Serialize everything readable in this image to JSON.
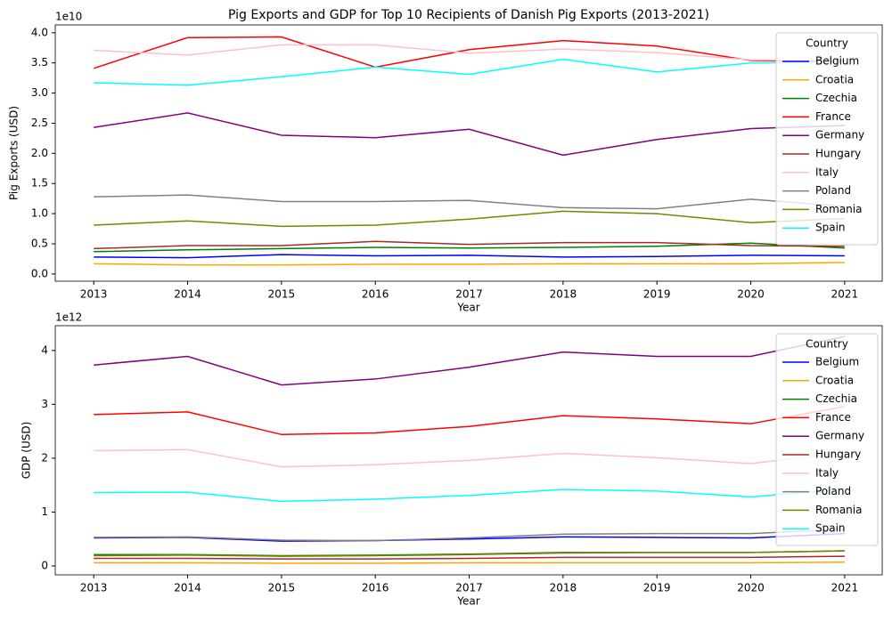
{
  "chart_data": [
    {
      "type": "line",
      "title": "Pig Exports and GDP for Top 10 Recipients of Danish Pig Exports (2013-2021)",
      "xlabel": "Year",
      "ylabel": "Pig Exports (USD)",
      "offset_text": "1e10",
      "x": [
        2013,
        2014,
        2015,
        2016,
        2017,
        2018,
        2019,
        2020,
        2021
      ],
      "xlim": [
        2012.59,
        2021.4
      ],
      "xticks": [
        2013,
        2014,
        2015,
        2016,
        2017,
        2018,
        2019,
        2020,
        2021
      ],
      "ylim": [
        -0.12,
        4.13
      ],
      "yticks": [
        {
          "value": 0,
          "label": "0.0"
        },
        {
          "value": 0.5,
          "label": "0.5"
        },
        {
          "value": 1,
          "label": "1.0"
        },
        {
          "value": 1.5,
          "label": "1.5"
        },
        {
          "value": 2,
          "label": "2.0"
        },
        {
          "value": 2.5,
          "label": "2.5"
        },
        {
          "value": 3,
          "label": "3.0"
        },
        {
          "value": 3.5,
          "label": "3.5"
        },
        {
          "value": 4,
          "label": "4.0"
        }
      ],
      "legend_title": "Country",
      "legend": "upper right",
      "series": [
        {
          "name": "Belgium",
          "color": "#0000ff",
          "values": [
            0.28,
            0.27,
            0.32,
            0.3,
            0.31,
            0.28,
            0.29,
            0.31,
            0.3
          ]
        },
        {
          "name": "Croatia",
          "color": "#ffa500",
          "values": [
            0.17,
            0.15,
            0.15,
            0.16,
            0.16,
            0.17,
            0.17,
            0.17,
            0.19
          ]
        },
        {
          "name": "Czechia",
          "color": "#008000",
          "values": [
            0.37,
            0.4,
            0.42,
            0.44,
            0.43,
            0.44,
            0.46,
            0.51,
            0.43
          ]
        },
        {
          "name": "France",
          "color": "#ff0000",
          "values": [
            3.41,
            3.92,
            3.93,
            3.43,
            3.72,
            3.87,
            3.78,
            3.54,
            3.53
          ]
        },
        {
          "name": "Germany",
          "color": "#800080",
          "values": [
            2.43,
            2.67,
            2.3,
            2.26,
            2.4,
            1.97,
            2.23,
            2.41,
            2.46
          ]
        },
        {
          "name": "Hungary",
          "color": "#a52a2a",
          "values": [
            0.42,
            0.47,
            0.47,
            0.54,
            0.49,
            0.52,
            0.52,
            0.47,
            0.46
          ]
        },
        {
          "name": "Italy",
          "color": "#ffc0cb",
          "values": [
            3.71,
            3.63,
            3.8,
            3.8,
            3.66,
            3.73,
            3.67,
            3.55,
            3.55
          ]
        },
        {
          "name": "Poland",
          "color": "#808080",
          "values": [
            1.28,
            1.31,
            1.2,
            1.2,
            1.22,
            1.1,
            1.08,
            1.24,
            1.12
          ]
        },
        {
          "name": "Romania",
          "color": "#808000",
          "values": [
            0.81,
            0.88,
            0.79,
            0.81,
            0.91,
            1.04,
            1.0,
            0.85,
            0.92
          ]
        },
        {
          "name": "Spain",
          "color": "#00ffff",
          "values": [
            3.17,
            3.13,
            3.27,
            3.43,
            3.31,
            3.56,
            3.35,
            3.5,
            3.52
          ]
        }
      ]
    },
    {
      "type": "line",
      "xlabel": "Year",
      "ylabel": "GDP (USD)",
      "offset_text": "1e12",
      "x": [
        2013,
        2014,
        2015,
        2016,
        2017,
        2018,
        2019,
        2020,
        2021
      ],
      "xlim": [
        2012.59,
        2021.4
      ],
      "xticks": [
        2013,
        2014,
        2015,
        2016,
        2017,
        2018,
        2019,
        2020,
        2021
      ],
      "ylim": [
        -0.165,
        4.46
      ],
      "yticks": [
        0,
        1,
        2,
        3,
        4
      ],
      "legend_title": "Country",
      "legend": "upper right",
      "series": [
        {
          "name": "Belgium",
          "color": "#0000ff",
          "values": [
            0.52,
            0.53,
            0.46,
            0.47,
            0.5,
            0.54,
            0.53,
            0.52,
            0.6
          ]
        },
        {
          "name": "Croatia",
          "color": "#ffa500",
          "values": [
            0.06,
            0.06,
            0.05,
            0.05,
            0.06,
            0.06,
            0.06,
            0.06,
            0.07
          ]
        },
        {
          "name": "Czechia",
          "color": "#008000",
          "values": [
            0.21,
            0.21,
            0.19,
            0.2,
            0.22,
            0.25,
            0.25,
            0.25,
            0.28
          ]
        },
        {
          "name": "France",
          "color": "#ff0000",
          "values": [
            2.81,
            2.86,
            2.44,
            2.47,
            2.59,
            2.79,
            2.73,
            2.64,
            2.96
          ]
        },
        {
          "name": "Germany",
          "color": "#800080",
          "values": [
            3.73,
            3.89,
            3.36,
            3.47,
            3.69,
            3.97,
            3.89,
            3.89,
            4.26
          ]
        },
        {
          "name": "Hungary",
          "color": "#a52a2a",
          "values": [
            0.14,
            0.14,
            0.13,
            0.13,
            0.14,
            0.16,
            0.16,
            0.16,
            0.18
          ]
        },
        {
          "name": "Italy",
          "color": "#ffc0cb",
          "values": [
            2.14,
            2.16,
            1.84,
            1.88,
            1.96,
            2.09,
            2.01,
            1.9,
            2.11
          ]
        },
        {
          "name": "Poland",
          "color": "#808080",
          "values": [
            0.53,
            0.54,
            0.48,
            0.47,
            0.52,
            0.59,
            0.6,
            0.6,
            0.68
          ]
        },
        {
          "name": "Romania",
          "color": "#808000",
          "values": [
            0.19,
            0.2,
            0.18,
            0.19,
            0.21,
            0.24,
            0.25,
            0.25,
            0.28
          ]
        },
        {
          "name": "Spain",
          "color": "#00ffff",
          "values": [
            1.36,
            1.37,
            1.2,
            1.24,
            1.31,
            1.42,
            1.39,
            1.28,
            1.43
          ]
        }
      ]
    }
  ]
}
